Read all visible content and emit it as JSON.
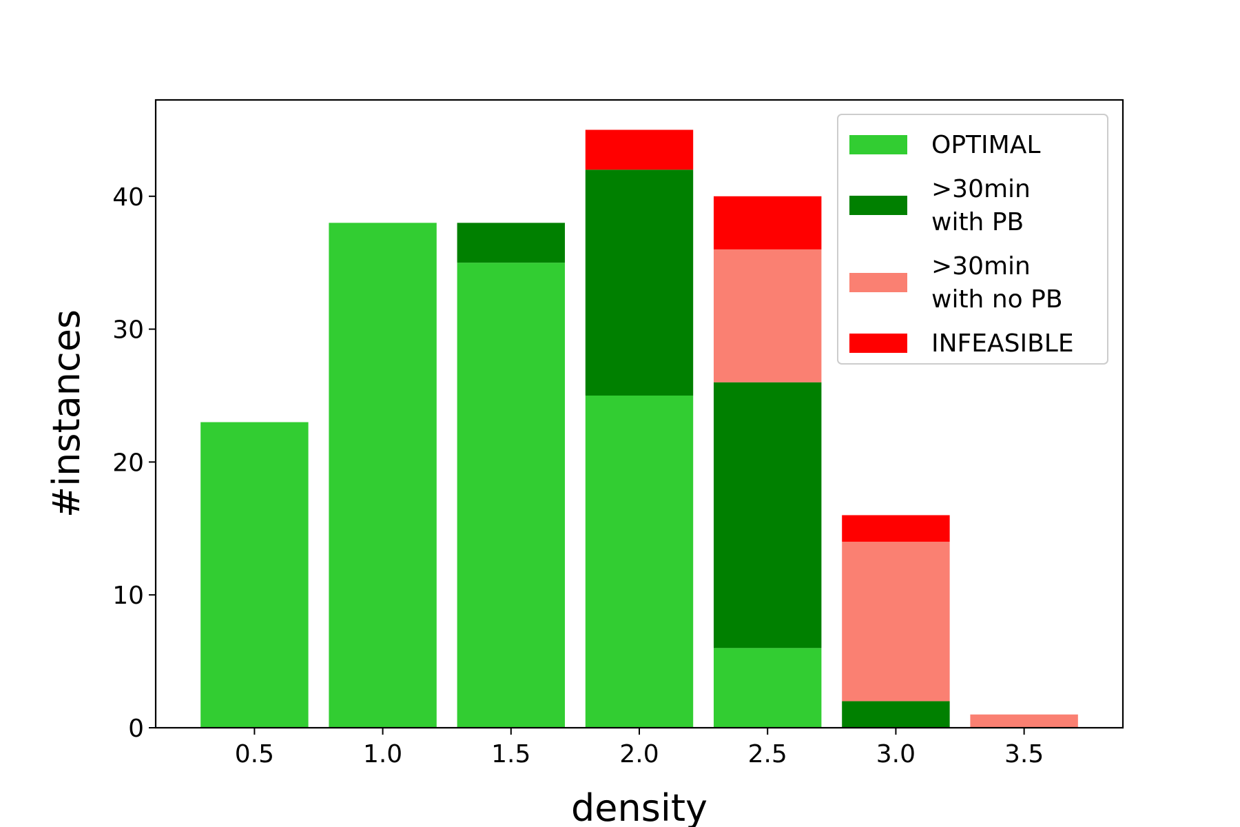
{
  "chart_data": {
    "type": "bar",
    "stacked": true,
    "xlabel": "density",
    "ylabel": "#instances",
    "x": [
      0.5,
      1.0,
      1.5,
      2.0,
      2.5,
      3.0,
      3.5
    ],
    "x_tick_labels": [
      "0.5",
      "1.0",
      "1.5",
      "2.0",
      "2.5",
      "3.0",
      "3.5"
    ],
    "y_ticks": [
      0,
      10,
      20,
      30,
      40
    ],
    "y_tick_labels": [
      "0",
      "10",
      "20",
      "30",
      "40"
    ],
    "xlim": [
      0.115,
      3.885
    ],
    "ylim": [
      0,
      47.25
    ],
    "bar_width": 0.42,
    "grid": false,
    "legend_position": "top-right",
    "series": [
      {
        "name": "OPTIMAL",
        "legend_lines": [
          "OPTIMAL"
        ],
        "color": "#32CD32",
        "values": [
          23,
          38,
          35,
          25,
          6,
          0,
          0
        ]
      },
      {
        "name": ">30min with PB",
        "legend_lines": [
          ">30min",
          "with PB"
        ],
        "color": "#008000",
        "values": [
          0,
          0,
          3,
          17,
          20,
          2,
          0
        ]
      },
      {
        "name": ">30min with no PB",
        "legend_lines": [
          ">30min",
          "with no PB"
        ],
        "color": "#FA8072",
        "values": [
          0,
          0,
          0,
          0,
          10,
          12,
          1
        ]
      },
      {
        "name": "INFEASIBLE",
        "legend_lines": [
          "INFEASIBLE"
        ],
        "color": "#FF0000",
        "values": [
          0,
          0,
          0,
          3,
          4,
          2,
          0
        ]
      }
    ]
  }
}
